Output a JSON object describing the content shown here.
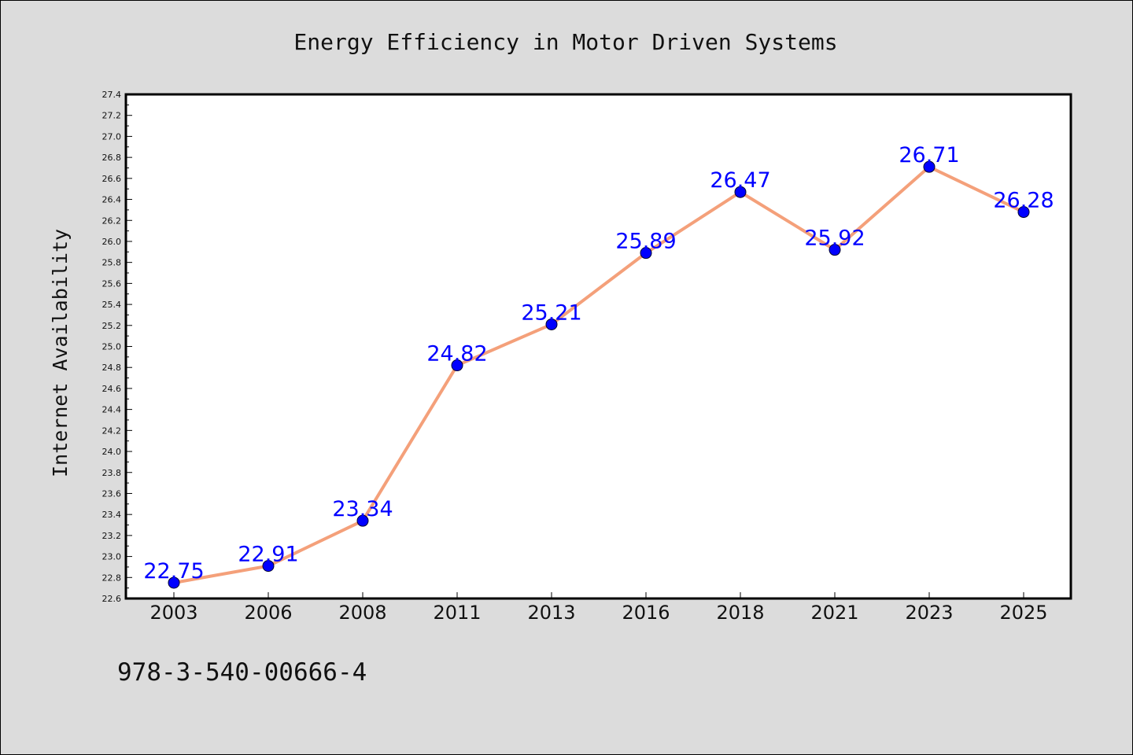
{
  "chart_data": {
    "type": "line",
    "title": "Energy Efficiency in Motor Driven Systems",
    "xlabel": "",
    "ylabel": "Internet Availability",
    "categories": [
      "2003",
      "2006",
      "2008",
      "2011",
      "2013",
      "2016",
      "2018",
      "2021",
      "2023",
      "2025"
    ],
    "values": [
      22.75,
      22.91,
      23.34,
      24.82,
      25.21,
      25.89,
      26.47,
      25.92,
      26.71,
      26.28
    ],
    "data_labels": [
      "22.75",
      "22.91",
      "23.34",
      "24.82",
      "25.21",
      "25.89",
      "26.47",
      "25.92",
      "26.71",
      "26.28"
    ],
    "ylim": [
      22.6,
      27.4
    ],
    "yticks": [
      "22.6",
      "22.8",
      "23.0",
      "23.2",
      "23.4",
      "23.6",
      "23.8",
      "24.0",
      "24.2",
      "24.4",
      "24.6",
      "24.8",
      "25.0",
      "25.2",
      "25.4",
      "25.6",
      "25.8",
      "26.0",
      "26.2",
      "26.4",
      "26.6",
      "26.8",
      "27.0",
      "27.2",
      "27.4"
    ],
    "grid": false,
    "legend": "none",
    "colors": {
      "line": "#f4a07a",
      "marker": "#0000ff",
      "label": "#0000ff",
      "plot_background": "#ffffff",
      "figure_background": "#dcdcdc"
    }
  },
  "footer": {
    "code": "978-3-540-00666-4"
  }
}
